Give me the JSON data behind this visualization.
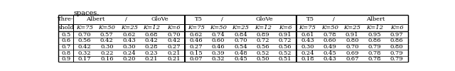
{
  "rows": [
    [
      0.5,
      0.7,
      0.57,
      0.62,
      0.68,
      0.7,
      0.62,
      0.74,
      0.84,
      0.89,
      0.91,
      0.61,
      0.78,
      0.91,
      0.95,
      0.97
    ],
    [
      0.6,
      0.56,
      0.42,
      0.43,
      0.42,
      0.42,
      0.46,
      0.6,
      0.7,
      0.72,
      0.72,
      0.43,
      0.6,
      0.8,
      0.86,
      0.86
    ],
    [
      0.7,
      0.42,
      0.3,
      0.3,
      0.28,
      0.27,
      0.27,
      0.46,
      0.54,
      0.56,
      0.56,
      0.3,
      0.49,
      0.7,
      0.79,
      0.8
    ],
    [
      0.8,
      0.32,
      0.22,
      0.24,
      0.23,
      0.21,
      0.15,
      0.39,
      0.48,
      0.52,
      0.52,
      0.24,
      0.45,
      0.69,
      0.78,
      0.79
    ],
    [
      0.9,
      0.17,
      0.16,
      0.2,
      0.21,
      0.21,
      0.07,
      0.32,
      0.45,
      0.5,
      0.51,
      0.18,
      0.43,
      0.67,
      0.78,
      0.79
    ]
  ],
  "bg_color": "#ffffff",
  "line_color": "#000000",
  "font_size": 6.0,
  "title": "spaces."
}
